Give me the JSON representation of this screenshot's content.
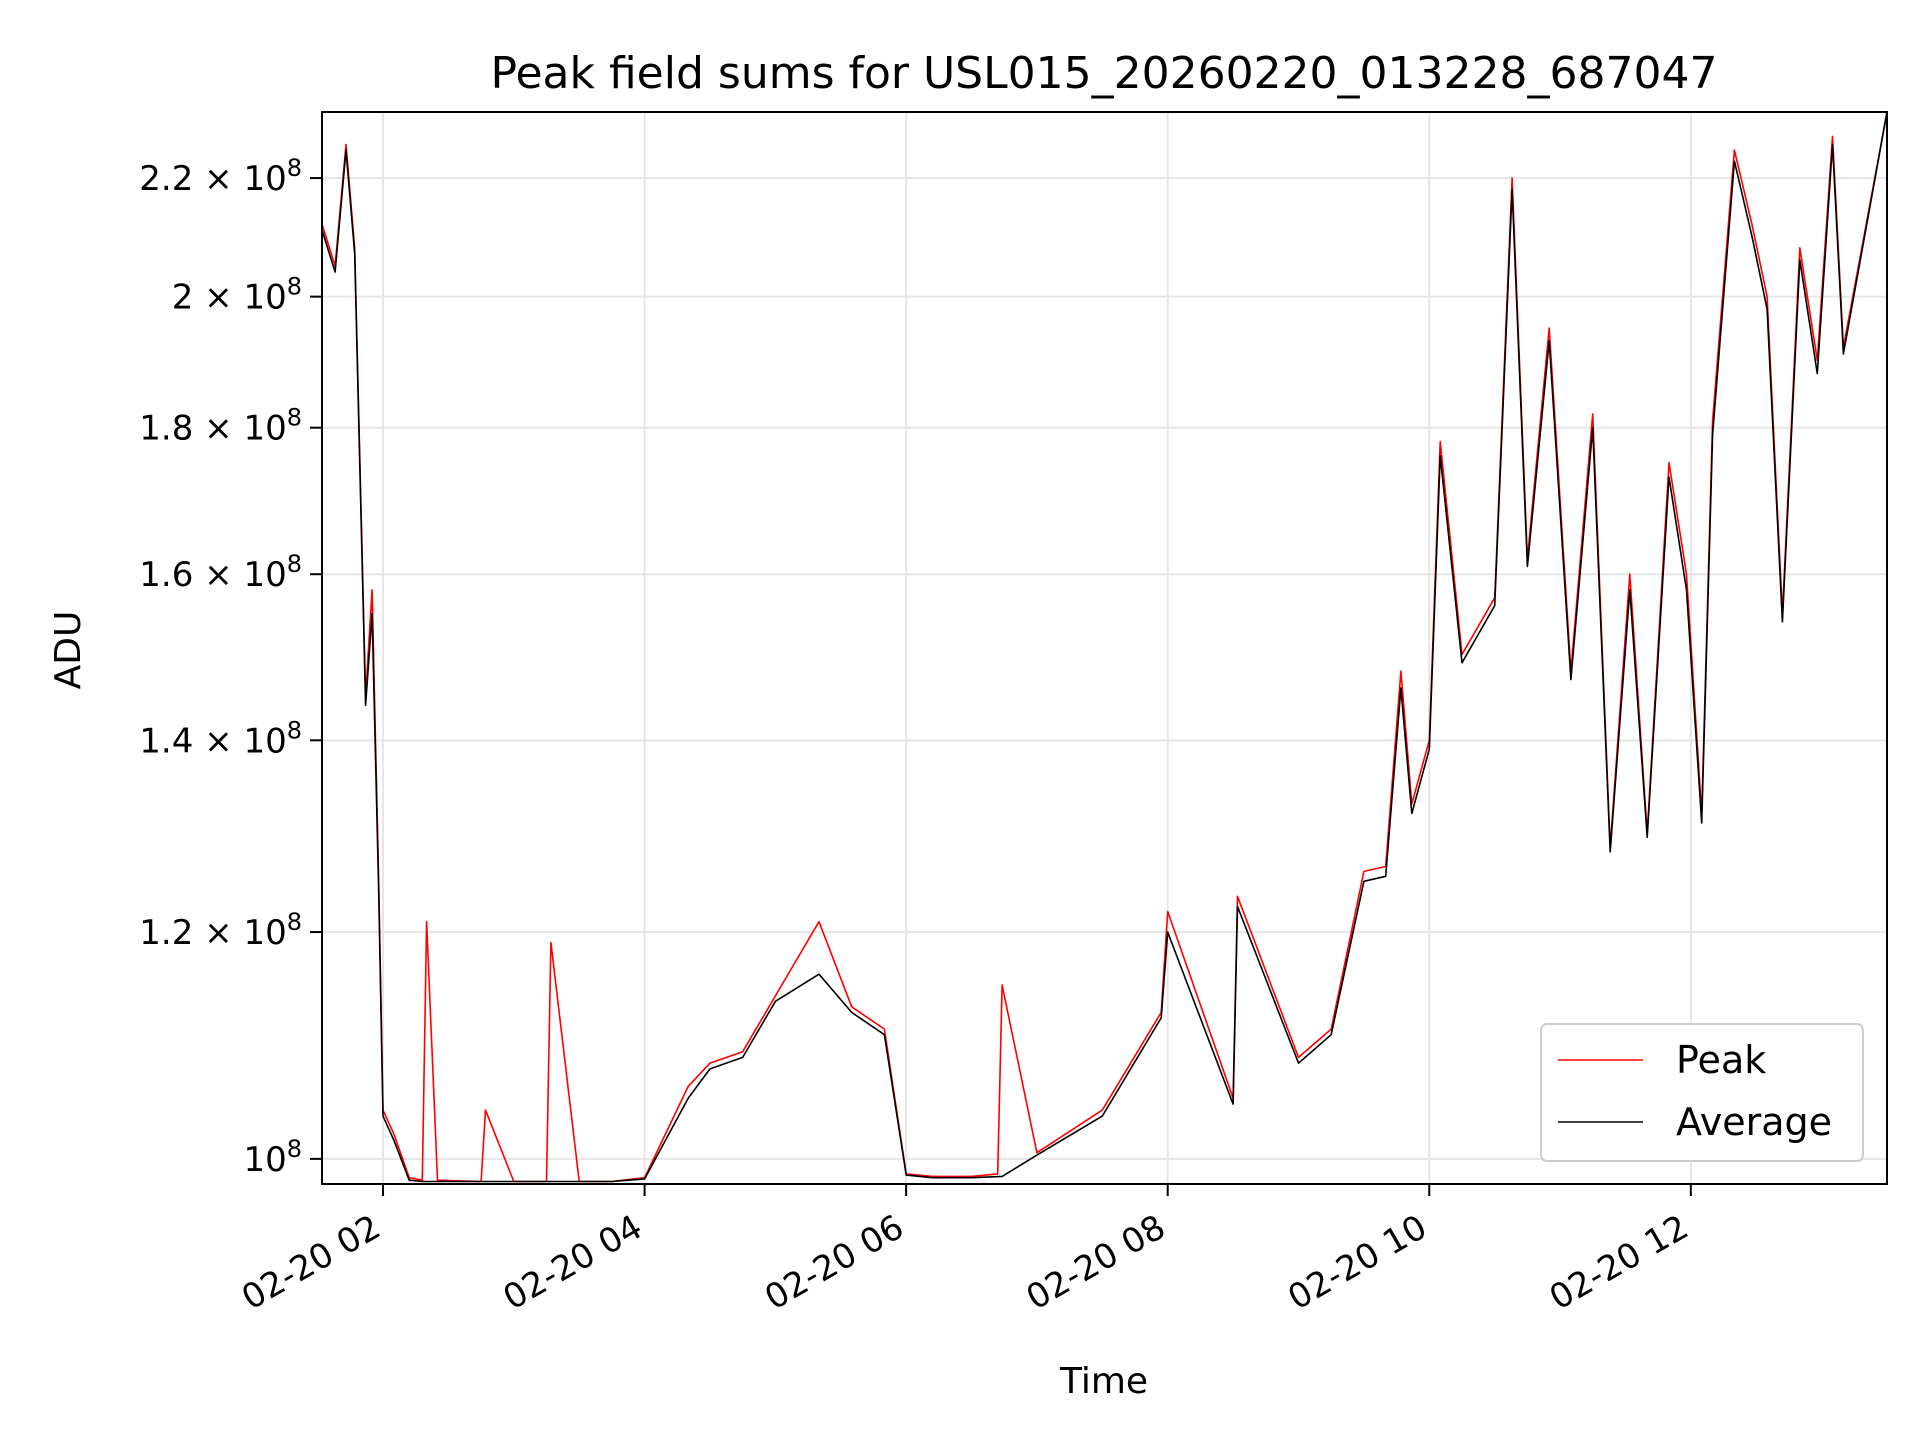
{
  "chart_data": {
    "type": "line",
    "title": "Peak field sums for USL015_20260220_013228_687047",
    "xlabel": "Time",
    "ylabel": "ADU",
    "yscale": "log",
    "xlim": [
      "2026-02-20 01:32",
      "2026-02-20 13:30"
    ],
    "ylim": [
      98000000,
      232000000
    ],
    "grid": true,
    "legend": {
      "placement": "lower right",
      "entries": [
        "Peak",
        "Average"
      ]
    },
    "colors": {
      "Peak": "#ff0000",
      "Average": "#000000"
    },
    "x_ticks": [
      "02-20 02",
      "02-20 04",
      "02-20 06",
      "02-20 08",
      "02-20 10",
      "02-20 12"
    ],
    "y_ticks": [
      {
        "value": 100000000,
        "mantissa": "",
        "base": "10",
        "exp": "8"
      },
      {
        "value": 120000000,
        "mantissa": "1.2 × ",
        "base": "10",
        "exp": "8"
      },
      {
        "value": 140000000,
        "mantissa": "1.4 × ",
        "base": "10",
        "exp": "8"
      },
      {
        "value": 160000000,
        "mantissa": "1.6 × ",
        "base": "10",
        "exp": "8"
      },
      {
        "value": 180000000,
        "mantissa": "1.8 × ",
        "base": "10",
        "exp": "8"
      },
      {
        "value": 200000000,
        "mantissa": "2 × ",
        "base": "10",
        "exp": "8"
      },
      {
        "value": 220000000,
        "mantissa": "2.2 × ",
        "base": "10",
        "exp": "8"
      }
    ],
    "series": [
      {
        "name": "Peak",
        "x": [
          "2026-02-20 01:32",
          "2026-02-20 01:38",
          "2026-02-20 01:43",
          "2026-02-20 01:47",
          "2026-02-20 01:52",
          "2026-02-20 01:55",
          "2026-02-20 01:58",
          "2026-02-20 02:00",
          "2026-02-20 02:05",
          "2026-02-20 02:12",
          "2026-02-20 02:18",
          "2026-02-20 02:20",
          "2026-02-20 02:25",
          "2026-02-20 02:45",
          "2026-02-20 02:47",
          "2026-02-20 03:00",
          "2026-02-20 03:15",
          "2026-02-20 03:17",
          "2026-02-20 03:30",
          "2026-02-20 03:45",
          "2026-02-20 04:00",
          "2026-02-20 04:20",
          "2026-02-20 04:30",
          "2026-02-20 04:45",
          "2026-02-20 05:00",
          "2026-02-20 05:20",
          "2026-02-20 05:35",
          "2026-02-20 05:50",
          "2026-02-20 06:00",
          "2026-02-20 06:12",
          "2026-02-20 06:30",
          "2026-02-20 06:42",
          "2026-02-20 06:44",
          "2026-02-20 07:00",
          "2026-02-20 07:30",
          "2026-02-20 07:57",
          "2026-02-20 08:00",
          "2026-02-20 08:30",
          "2026-02-20 08:32",
          "2026-02-20 09:00",
          "2026-02-20 09:15",
          "2026-02-20 09:30",
          "2026-02-20 09:40",
          "2026-02-20 09:47",
          "2026-02-20 09:52",
          "2026-02-20 10:00",
          "2026-02-20 10:05",
          "2026-02-20 10:15",
          "2026-02-20 10:30",
          "2026-02-20 10:38",
          "2026-02-20 10:45",
          "2026-02-20 10:55",
          "2026-02-20 11:05",
          "2026-02-20 11:15",
          "2026-02-20 11:23",
          "2026-02-20 11:32",
          "2026-02-20 11:40",
          "2026-02-20 11:50",
          "2026-02-20 11:58",
          "2026-02-20 12:05",
          "2026-02-20 12:10",
          "2026-02-20 12:20",
          "2026-02-20 12:28",
          "2026-02-20 12:35",
          "2026-02-20 12:42",
          "2026-02-20 12:50",
          "2026-02-20 12:58",
          "2026-02-20 13:05",
          "2026-02-20 13:10",
          "2026-02-20 13:30"
        ],
        "y": [
          212000000,
          205000000,
          226000000,
          208000000,
          145000000,
          158000000,
          125000000,
          104000000,
          102000000,
          98500000,
          98300000,
          121000000,
          98300000,
          98200000,
          104000000,
          98200000,
          98200000,
          119000000,
          98200000,
          98200000,
          98500000,
          106000000,
          108000000,
          109000000,
          114000000,
          121000000,
          113000000,
          111000000,
          98800000,
          98600000,
          98600000,
          98800000,
          115000000,
          100500000,
          104000000,
          112500000,
          122000000,
          105000000,
          123500000,
          108500000,
          111000000,
          126000000,
          126500000,
          148000000,
          133000000,
          140000000,
          178000000,
          150000000,
          157000000,
          220000000,
          162000000,
          195000000,
          148000000,
          182000000,
          128500000,
          160000000,
          130000000,
          175000000,
          160000000,
          132000000,
          181000000,
          225000000,
          212000000,
          200000000,
          155000000,
          208000000,
          190000000,
          227500000,
          192000000,
          232000000
        ]
      },
      {
        "name": "Average",
        "x": [
          "2026-02-20 01:32",
          "2026-02-20 01:38",
          "2026-02-20 01:43",
          "2026-02-20 01:47",
          "2026-02-20 01:52",
          "2026-02-20 01:55",
          "2026-02-20 01:58",
          "2026-02-20 02:00",
          "2026-02-20 02:05",
          "2026-02-20 02:12",
          "2026-02-20 02:18",
          "2026-02-20 02:25",
          "2026-02-20 02:45",
          "2026-02-20 03:00",
          "2026-02-20 03:30",
          "2026-02-20 03:45",
          "2026-02-20 04:00",
          "2026-02-20 04:20",
          "2026-02-20 04:30",
          "2026-02-20 04:45",
          "2026-02-20 05:00",
          "2026-02-20 05:20",
          "2026-02-20 05:35",
          "2026-02-20 05:50",
          "2026-02-20 06:00",
          "2026-02-20 06:12",
          "2026-02-20 06:30",
          "2026-02-20 06:44",
          "2026-02-20 07:00",
          "2026-02-20 07:30",
          "2026-02-20 07:57",
          "2026-02-20 08:00",
          "2026-02-20 08:30",
          "2026-02-20 08:32",
          "2026-02-20 09:00",
          "2026-02-20 09:15",
          "2026-02-20 09:30",
          "2026-02-20 09:40",
          "2026-02-20 09:47",
          "2026-02-20 09:52",
          "2026-02-20 10:00",
          "2026-02-20 10:05",
          "2026-02-20 10:15",
          "2026-02-20 10:30",
          "2026-02-20 10:38",
          "2026-02-20 10:45",
          "2026-02-20 10:55",
          "2026-02-20 11:05",
          "2026-02-20 11:15",
          "2026-02-20 11:23",
          "2026-02-20 11:32",
          "2026-02-20 11:40",
          "2026-02-20 11:50",
          "2026-02-20 11:58",
          "2026-02-20 12:05",
          "2026-02-20 12:10",
          "2026-02-20 12:20",
          "2026-02-20 12:28",
          "2026-02-20 12:35",
          "2026-02-20 12:42",
          "2026-02-20 12:50",
          "2026-02-20 12:58",
          "2026-02-20 13:05",
          "2026-02-20 13:10",
          "2026-02-20 13:30"
        ],
        "y": [
          211000000,
          204000000,
          225000000,
          207000000,
          144000000,
          155000000,
          124000000,
          103500000,
          101500000,
          98300000,
          98200000,
          98200000,
          98200000,
          98200000,
          98200000,
          98200000,
          98400000,
          105000000,
          107500000,
          108500000,
          113500000,
          116000000,
          112500000,
          110500000,
          98700000,
          98500000,
          98500000,
          98600000,
          100300000,
          103500000,
          112000000,
          120000000,
          104500000,
          122500000,
          108000000,
          110500000,
          125000000,
          125500000,
          146000000,
          132000000,
          139000000,
          176000000,
          149000000,
          156000000,
          218000000,
          161000000,
          193000000,
          147000000,
          180000000,
          128000000,
          158000000,
          129500000,
          173000000,
          158000000,
          131000000,
          179000000,
          223000000,
          210000000,
          198000000,
          154000000,
          206000000,
          188000000,
          226000000,
          191000000,
          232000000
        ]
      }
    ]
  }
}
